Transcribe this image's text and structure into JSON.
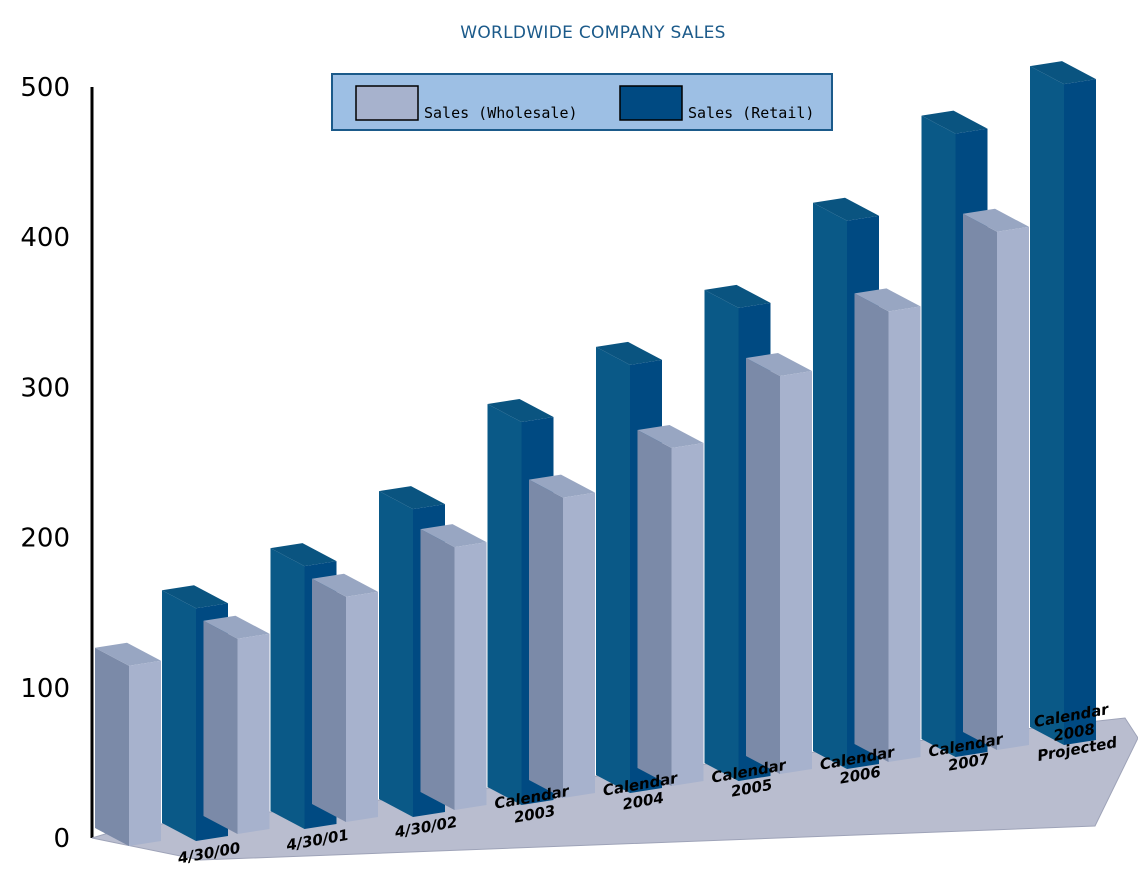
{
  "chart_data": {
    "type": "bar",
    "title": "WORLDWIDE COMPANY SALES",
    "categories": [
      [
        "4/30/00"
      ],
      [
        "4/30/01"
      ],
      [
        "4/30/02"
      ],
      [
        "Calendar",
        "2003"
      ],
      [
        "Calendar",
        "2004"
      ],
      [
        "Calendar",
        "2005"
      ],
      [
        "Calendar",
        "2006"
      ],
      [
        "Calendar",
        "2007"
      ],
      [
        "Calendar",
        "2008",
        "Projected"
      ]
    ],
    "series": [
      {
        "name": "Sales (Wholesale)",
        "values": [
          120,
          130,
          150,
          175,
          200,
          225,
          265,
          300,
          345
        ],
        "color": "#a7b2cd"
      },
      {
        "name": "Sales (Retail)",
        "values": [
          155,
          175,
          205,
          255,
          285,
          315,
          365,
          415,
          440
        ],
        "color": "#004a82"
      }
    ],
    "yticks": [
      0,
      100,
      200,
      300,
      400,
      500
    ],
    "ylim": [
      0,
      500
    ],
    "grid": false,
    "legend_position": "top-center",
    "style": "3d"
  }
}
